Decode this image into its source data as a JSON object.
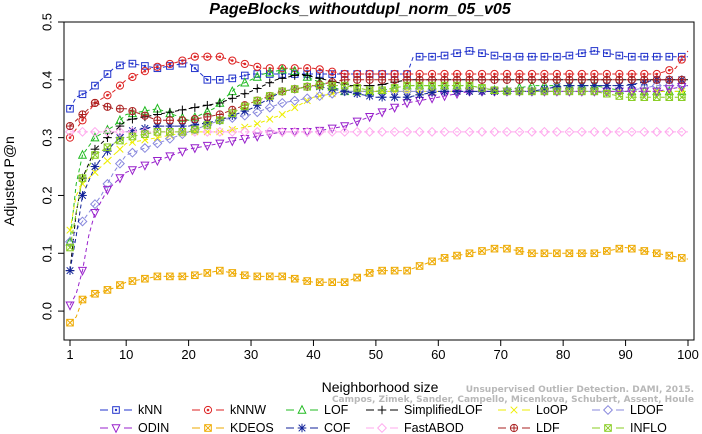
{
  "chart_data": {
    "type": "line",
    "title": "PageBlocks_withoutdupl_norm_05_v05",
    "xlabel": "Neighborhood size",
    "ylabel": "Adjusted P@n",
    "xlim": [
      1,
      100
    ],
    "ylim": [
      -0.05,
      0.5
    ],
    "xticks": [
      1,
      10,
      20,
      30,
      40,
      50,
      60,
      70,
      80,
      90,
      100
    ],
    "yticks": [
      0.0,
      0.1,
      0.2,
      0.3,
      0.4,
      0.5
    ],
    "grid": false,
    "legend_position": "bottom",
    "series": [
      {
        "name": "kNN",
        "color": "#2233cc",
        "marker": "square-dot",
        "points": [
          [
            1,
            0.35
          ],
          [
            2,
            0.37
          ],
          [
            4,
            0.38
          ],
          [
            6,
            0.4
          ],
          [
            8,
            0.42
          ],
          [
            10,
            0.43
          ],
          [
            15,
            0.42
          ],
          [
            20,
            0.43
          ],
          [
            23,
            0.4
          ],
          [
            26,
            0.4
          ],
          [
            30,
            0.41
          ],
          [
            35,
            0.41
          ],
          [
            40,
            0.41
          ],
          [
            45,
            0.41
          ],
          [
            50,
            0.41
          ],
          [
            55,
            0.41
          ],
          [
            56,
            0.44
          ],
          [
            60,
            0.44
          ],
          [
            65,
            0.45
          ],
          [
            70,
            0.44
          ],
          [
            75,
            0.44
          ],
          [
            80,
            0.44
          ],
          [
            85,
            0.45
          ],
          [
            90,
            0.44
          ],
          [
            95,
            0.44
          ],
          [
            100,
            0.44
          ]
        ]
      },
      {
        "name": "kNNW",
        "color": "#dd2222",
        "marker": "circle-dot",
        "points": [
          [
            1,
            0.3
          ],
          [
            3,
            0.33
          ],
          [
            5,
            0.36
          ],
          [
            8,
            0.38
          ],
          [
            10,
            0.4
          ],
          [
            14,
            0.42
          ],
          [
            18,
            0.43
          ],
          [
            21,
            0.44
          ],
          [
            25,
            0.44
          ],
          [
            28,
            0.43
          ],
          [
            32,
            0.42
          ],
          [
            36,
            0.42
          ],
          [
            40,
            0.42
          ],
          [
            45,
            0.41
          ],
          [
            50,
            0.41
          ],
          [
            55,
            0.41
          ],
          [
            60,
            0.41
          ],
          [
            65,
            0.41
          ],
          [
            70,
            0.41
          ],
          [
            75,
            0.41
          ],
          [
            80,
            0.41
          ],
          [
            85,
            0.41
          ],
          [
            90,
            0.41
          ],
          [
            95,
            0.41
          ],
          [
            98,
            0.42
          ],
          [
            100,
            0.45
          ]
        ]
      },
      {
        "name": "LOF",
        "color": "#22bb22",
        "marker": "triangle-up",
        "points": [
          [
            1,
            0.12
          ],
          [
            2,
            0.22
          ],
          [
            3,
            0.27
          ],
          [
            5,
            0.3
          ],
          [
            8,
            0.32
          ],
          [
            10,
            0.34
          ],
          [
            15,
            0.35
          ],
          [
            20,
            0.33
          ],
          [
            24,
            0.35
          ],
          [
            28,
            0.39
          ],
          [
            32,
            0.41
          ],
          [
            36,
            0.42
          ],
          [
            40,
            0.4
          ],
          [
            45,
            0.38
          ],
          [
            50,
            0.38
          ],
          [
            55,
            0.39
          ],
          [
            60,
            0.39
          ],
          [
            65,
            0.39
          ],
          [
            70,
            0.38
          ],
          [
            75,
            0.39
          ],
          [
            80,
            0.39
          ],
          [
            85,
            0.39
          ],
          [
            90,
            0.38
          ],
          [
            95,
            0.38
          ],
          [
            100,
            0.38
          ]
        ]
      },
      {
        "name": "SimplifiedLOF",
        "color": "#000000",
        "marker": "plus",
        "points": [
          [
            1,
            0.07
          ],
          [
            2,
            0.17
          ],
          [
            3,
            0.23
          ],
          [
            5,
            0.28
          ],
          [
            8,
            0.31
          ],
          [
            10,
            0.33
          ],
          [
            15,
            0.34
          ],
          [
            20,
            0.35
          ],
          [
            25,
            0.36
          ],
          [
            30,
            0.38
          ],
          [
            34,
            0.4
          ],
          [
            38,
            0.41
          ],
          [
            42,
            0.4
          ],
          [
            46,
            0.39
          ],
          [
            50,
            0.39
          ],
          [
            55,
            0.4
          ],
          [
            60,
            0.4
          ],
          [
            65,
            0.4
          ],
          [
            70,
            0.4
          ],
          [
            75,
            0.4
          ],
          [
            80,
            0.4
          ],
          [
            85,
            0.4
          ],
          [
            90,
            0.4
          ],
          [
            95,
            0.4
          ],
          [
            100,
            0.4
          ]
        ]
      },
      {
        "name": "LoOP",
        "color": "#eeee00",
        "marker": "x",
        "points": [
          [
            1,
            0.14
          ],
          [
            2,
            0.2
          ],
          [
            3,
            0.22
          ],
          [
            5,
            0.24
          ],
          [
            8,
            0.27
          ],
          [
            10,
            0.29
          ],
          [
            15,
            0.3
          ],
          [
            20,
            0.31
          ],
          [
            25,
            0.31
          ],
          [
            30,
            0.32
          ],
          [
            35,
            0.34
          ],
          [
            40,
            0.37
          ],
          [
            45,
            0.38
          ],
          [
            50,
            0.38
          ],
          [
            55,
            0.38
          ],
          [
            60,
            0.38
          ],
          [
            65,
            0.38
          ],
          [
            70,
            0.38
          ],
          [
            75,
            0.38
          ],
          [
            80,
            0.38
          ],
          [
            85,
            0.38
          ],
          [
            90,
            0.38
          ],
          [
            95,
            0.38
          ],
          [
            100,
            0.38
          ]
        ]
      },
      {
        "name": "LDOF",
        "color": "#8888dd",
        "marker": "diamond",
        "points": [
          [
            1,
            0.12
          ],
          [
            2,
            0.14
          ],
          [
            4,
            0.17
          ],
          [
            6,
            0.2
          ],
          [
            8,
            0.24
          ],
          [
            10,
            0.27
          ],
          [
            15,
            0.29
          ],
          [
            20,
            0.31
          ],
          [
            25,
            0.33
          ],
          [
            30,
            0.34
          ],
          [
            35,
            0.36
          ],
          [
            40,
            0.37
          ],
          [
            45,
            0.38
          ],
          [
            50,
            0.38
          ],
          [
            55,
            0.38
          ],
          [
            60,
            0.38
          ],
          [
            65,
            0.38
          ],
          [
            70,
            0.38
          ],
          [
            75,
            0.38
          ],
          [
            80,
            0.38
          ],
          [
            85,
            0.38
          ],
          [
            90,
            0.38
          ],
          [
            95,
            0.39
          ],
          [
            100,
            0.39
          ]
        ]
      },
      {
        "name": "ODIN",
        "color": "#9922cc",
        "marker": "triangle-down",
        "points": [
          [
            1,
            0.01
          ],
          [
            2,
            0.03
          ],
          [
            3,
            0.07
          ],
          [
            4,
            0.13
          ],
          [
            5,
            0.17
          ],
          [
            7,
            0.21
          ],
          [
            10,
            0.24
          ],
          [
            15,
            0.26
          ],
          [
            20,
            0.28
          ],
          [
            25,
            0.29
          ],
          [
            30,
            0.3
          ],
          [
            35,
            0.31
          ],
          [
            40,
            0.31
          ],
          [
            45,
            0.32
          ],
          [
            50,
            0.34
          ],
          [
            55,
            0.36
          ],
          [
            60,
            0.37
          ],
          [
            65,
            0.38
          ],
          [
            70,
            0.38
          ],
          [
            75,
            0.38
          ],
          [
            80,
            0.38
          ],
          [
            85,
            0.38
          ],
          [
            90,
            0.38
          ],
          [
            95,
            0.38
          ],
          [
            100,
            0.39
          ]
        ]
      },
      {
        "name": "KDEOS",
        "color": "#eeaa00",
        "marker": "square-x",
        "points": [
          [
            1,
            -0.02
          ],
          [
            2,
            -0.01
          ],
          [
            3,
            0.02
          ],
          [
            5,
            0.03
          ],
          [
            8,
            0.04
          ],
          [
            10,
            0.05
          ],
          [
            15,
            0.06
          ],
          [
            20,
            0.06
          ],
          [
            25,
            0.07
          ],
          [
            30,
            0.06
          ],
          [
            35,
            0.06
          ],
          [
            40,
            0.05
          ],
          [
            45,
            0.05
          ],
          [
            50,
            0.07
          ],
          [
            55,
            0.07
          ],
          [
            60,
            0.09
          ],
          [
            65,
            0.1
          ],
          [
            70,
            0.11
          ],
          [
            75,
            0.1
          ],
          [
            80,
            0.1
          ],
          [
            85,
            0.1
          ],
          [
            90,
            0.11
          ],
          [
            95,
            0.1
          ],
          [
            100,
            0.09
          ]
        ]
      },
      {
        "name": "COF",
        "color": "#112299",
        "marker": "asterisk",
        "points": [
          [
            1,
            0.07
          ],
          [
            2,
            0.13
          ],
          [
            3,
            0.2
          ],
          [
            5,
            0.25
          ],
          [
            8,
            0.29
          ],
          [
            10,
            0.31
          ],
          [
            15,
            0.32
          ],
          [
            20,
            0.32
          ],
          [
            25,
            0.33
          ],
          [
            30,
            0.35
          ],
          [
            35,
            0.38
          ],
          [
            40,
            0.39
          ],
          [
            45,
            0.38
          ],
          [
            50,
            0.37
          ],
          [
            55,
            0.37
          ],
          [
            60,
            0.38
          ],
          [
            65,
            0.38
          ],
          [
            70,
            0.38
          ],
          [
            75,
            0.38
          ],
          [
            80,
            0.39
          ],
          [
            85,
            0.39
          ],
          [
            90,
            0.39
          ],
          [
            95,
            0.4
          ],
          [
            100,
            0.4
          ]
        ]
      },
      {
        "name": "FastABOD",
        "color": "#ffaaee",
        "marker": "diamond-filled",
        "points": [
          [
            1,
            0.31
          ],
          [
            5,
            0.31
          ],
          [
            10,
            0.31
          ],
          [
            20,
            0.31
          ],
          [
            30,
            0.31
          ],
          [
            40,
            0.31
          ],
          [
            50,
            0.31
          ],
          [
            60,
            0.31
          ],
          [
            70,
            0.31
          ],
          [
            80,
            0.31
          ],
          [
            90,
            0.31
          ],
          [
            100,
            0.31
          ]
        ]
      },
      {
        "name": "LDF",
        "color": "#aa2222",
        "marker": "circle-plus",
        "points": [
          [
            1,
            0.32
          ],
          [
            3,
            0.34
          ],
          [
            5,
            0.36
          ],
          [
            8,
            0.35
          ],
          [
            10,
            0.35
          ],
          [
            15,
            0.33
          ],
          [
            20,
            0.33
          ],
          [
            25,
            0.34
          ],
          [
            30,
            0.36
          ],
          [
            35,
            0.38
          ],
          [
            40,
            0.39
          ],
          [
            45,
            0.4
          ],
          [
            50,
            0.4
          ],
          [
            55,
            0.4
          ],
          [
            60,
            0.4
          ],
          [
            65,
            0.4
          ],
          [
            70,
            0.4
          ],
          [
            75,
            0.4
          ],
          [
            80,
            0.4
          ],
          [
            85,
            0.4
          ],
          [
            90,
            0.4
          ],
          [
            95,
            0.4
          ],
          [
            100,
            0.4
          ]
        ]
      },
      {
        "name": "INFLO",
        "color": "#88cc22",
        "marker": "square-x",
        "points": [
          [
            1,
            0.11
          ],
          [
            2,
            0.17
          ],
          [
            3,
            0.23
          ],
          [
            5,
            0.27
          ],
          [
            8,
            0.29
          ],
          [
            10,
            0.3
          ],
          [
            15,
            0.31
          ],
          [
            20,
            0.31
          ],
          [
            25,
            0.33
          ],
          [
            30,
            0.36
          ],
          [
            35,
            0.38
          ],
          [
            40,
            0.39
          ],
          [
            45,
            0.39
          ],
          [
            50,
            0.38
          ],
          [
            55,
            0.39
          ],
          [
            60,
            0.39
          ],
          [
            65,
            0.39
          ],
          [
            70,
            0.38
          ],
          [
            75,
            0.38
          ],
          [
            80,
            0.38
          ],
          [
            85,
            0.38
          ],
          [
            90,
            0.37
          ],
          [
            95,
            0.37
          ],
          [
            100,
            0.37
          ]
        ]
      }
    ]
  },
  "watermark": {
    "line1": "Unsupervised Outlier Detection. DAMI, 2015.",
    "line2": "Campos, Zimek, Sander, Campello, Micenkova, Schubert, Assent, Houle"
  }
}
